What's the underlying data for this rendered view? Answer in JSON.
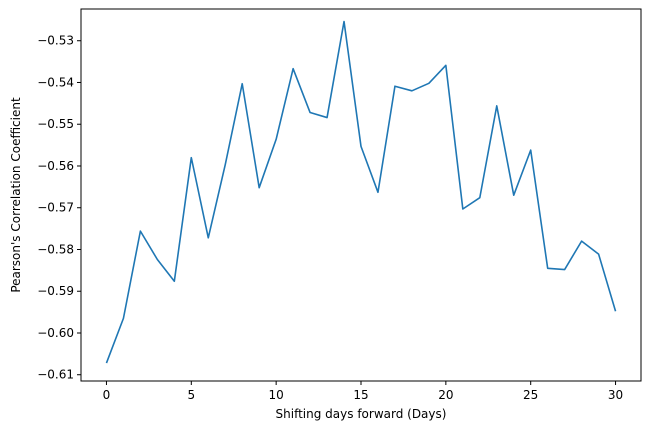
{
  "chart_data": {
    "type": "line",
    "title": "",
    "xlabel": "Shifting days forward (Days)",
    "ylabel": "Pearson's Correlation Coefficient",
    "xlim": [
      -1.5,
      31.5
    ],
    "ylim": [
      -0.6115,
      -0.5224
    ],
    "grid": false,
    "legend": "none",
    "x_ticks": [
      0,
      5,
      10,
      15,
      20,
      25,
      30
    ],
    "x_tick_labels": [
      "0",
      "5",
      "10",
      "15",
      "20",
      "25",
      "30"
    ],
    "y_ticks": [
      -0.61,
      -0.6,
      -0.59,
      -0.58,
      -0.57,
      -0.56,
      -0.55,
      -0.54,
      -0.53
    ],
    "y_tick_labels": [
      "−0.61",
      "−0.60",
      "−0.59",
      "−0.58",
      "−0.57",
      "−0.56",
      "−0.55",
      "−0.54",
      "−0.53"
    ],
    "series": [
      {
        "color": "#1f77b4",
        "x": [
          0,
          1,
          2,
          3,
          4,
          5,
          6,
          7,
          8,
          9,
          10,
          11,
          12,
          13,
          14,
          15,
          16,
          17,
          18,
          19,
          20,
          21,
          22,
          23,
          24,
          25,
          26,
          27,
          28,
          29,
          30
        ],
        "y": [
          -0.6072,
          -0.5965,
          -0.5756,
          -0.5824,
          -0.5876,
          -0.558,
          -0.5772,
          -0.5597,
          -0.5403,
          -0.5652,
          -0.5536,
          -0.5367,
          -0.5472,
          -0.5484,
          -0.5254,
          -0.5553,
          -0.5663,
          -0.5409,
          -0.542,
          -0.5402,
          -0.5359,
          -0.5703,
          -0.5676,
          -0.5456,
          -0.567,
          -0.5562,
          -0.5845,
          -0.5848,
          -0.578,
          -0.5811,
          -0.5948
        ]
      }
    ]
  }
}
